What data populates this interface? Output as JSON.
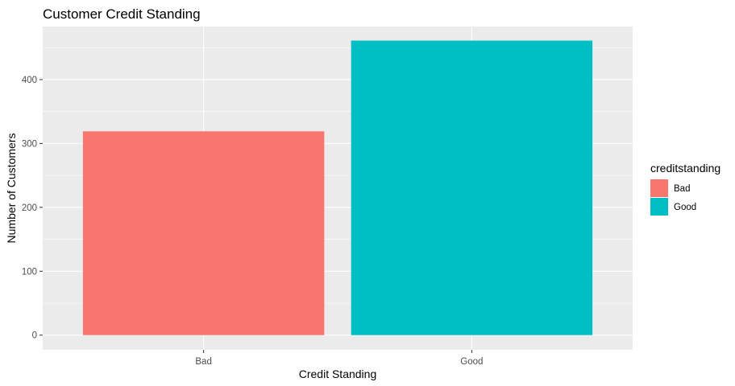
{
  "chart_data": {
    "type": "bar",
    "title": "Customer Credit Standing",
    "xlabel": "Credit Standing",
    "ylabel": "Number of Customers",
    "categories": [
      "Bad",
      "Good"
    ],
    "values": [
      319,
      461
    ],
    "ylim": [
      -23,
      483
    ],
    "y_ticks": [
      0,
      100,
      200,
      300,
      400
    ],
    "grid": true,
    "colors": {
      "Bad": "#F8766D",
      "Good": "#00BFC4",
      "panel": "#EBEBEB",
      "gridline": "#FFFFFF"
    },
    "legend": {
      "title": "creditstanding",
      "placement": "right",
      "items": [
        {
          "label": "Bad",
          "color": "#F8766D"
        },
        {
          "label": "Good",
          "color": "#00BFC4"
        }
      ]
    }
  }
}
